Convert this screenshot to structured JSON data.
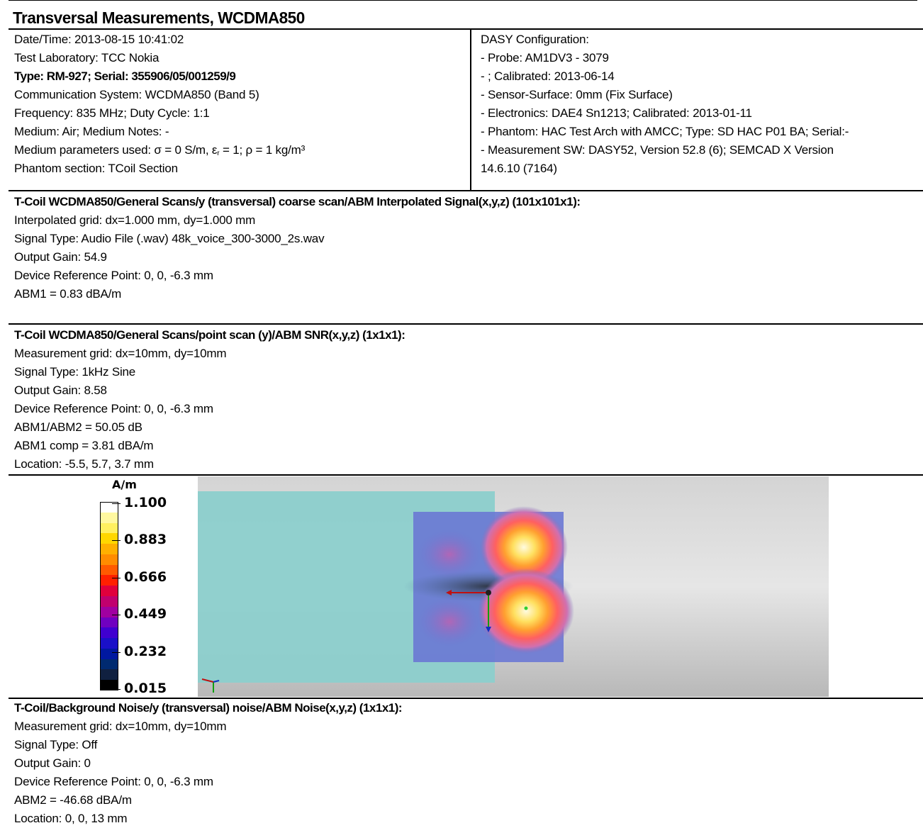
{
  "title": "Transversal Measurements, WCDMA850",
  "header_left": [
    {
      "text": "Date/Time: 2013-08-15 10:41:02",
      "bold": false
    },
    {
      "text": "Test Laboratory: TCC Nokia",
      "bold": false
    },
    {
      "text": "Type: RM-927; Serial: 355906/05/001259/9",
      "bold": true
    },
    {
      "text": "Communication System: WCDMA850 (Band 5)",
      "bold": false
    },
    {
      "text": "Frequency: 835 MHz; Duty Cycle: 1:1",
      "bold": false
    },
    {
      "text": "Medium: Air; Medium Notes: -",
      "bold": false
    },
    {
      "text": "Medium parameters used: σ = 0 S/m, εr = 1; ρ = 1 kg/m³",
      "bold": false
    },
    {
      "text": "Phantom section: TCoil Section",
      "bold": false
    }
  ],
  "header_right": [
    "DASY Configuration:",
    "- Probe: AM1DV3 - 3079",
    "- ; Calibrated: 2013-06-14",
    "- Sensor-Surface: 0mm (Fix Surface)",
    "- Electronics: DAE4 Sn1213; Calibrated: 2013-01-11",
    "- Phantom: HAC Test Arch with AMCC; Type: SD HAC P01 BA; Serial:-",
    "- Measurement SW: DASY52, Version 52.8 (6); SEMCAD X Version",
    "14.6.10 (7164)"
  ],
  "section1": {
    "heading": "T-Coil WCDMA850/General Scans/y (transversal) coarse scan/ABM Interpolated Signal(x,y,z) (101x101x1):",
    "lines": [
      "Interpolated grid: dx=1.000 mm, dy=1.000 mm",
      "Signal Type: Audio File (.wav) 48k_voice_300-3000_2s.wav",
      "Output Gain: 54.9",
      "Device Reference Point: 0, 0, -6.3 mm",
      "ABM1 = 0.83 dBA/m"
    ]
  },
  "section2": {
    "heading": "T-Coil WCDMA850/General Scans/point scan (y)/ABM SNR(x,y,z) (1x1x1):",
    "lines": [
      "Measurement grid: dx=10mm, dy=10mm",
      "Signal Type: 1kHz Sine",
      "Output Gain: 8.58",
      "Device Reference Point: 0, 0, -6.3 mm",
      "ABM1/ABM2 = 50.05 dB",
      "ABM1 comp = 3.81 dBA/m",
      "Location: -5.5, 5.7, 3.7 mm"
    ]
  },
  "colorbar": {
    "unit": "A/m",
    "labels": [
      "1.100",
      "0.883",
      "0.666",
      "0.449",
      "0.232",
      "0.015"
    ],
    "colors": [
      "#ffffff",
      "#fff8a0",
      "#fff060",
      "#ffd700",
      "#ffb000",
      "#ff8c00",
      "#ff5a00",
      "#ff2000",
      "#e0003c",
      "#c0006e",
      "#a000a0",
      "#7000c0",
      "#4000d0",
      "#1a10c8",
      "#0018a0",
      "#002a70",
      "#102040",
      "#000000"
    ]
  },
  "section3": {
    "heading": "T-Coil/Background Noise/y (transversal) noise/ABM Noise(x,y,z) (1x1x1):",
    "lines": [
      "Measurement grid: dx=10mm, dy=10mm",
      "Signal Type: Off",
      "Output Gain: 0",
      "Device Reference Point: 0, 0, -6.3 mm",
      "ABM2 = -46.68 dBA/m",
      "Location: 0, 0, 13 mm"
    ]
  }
}
